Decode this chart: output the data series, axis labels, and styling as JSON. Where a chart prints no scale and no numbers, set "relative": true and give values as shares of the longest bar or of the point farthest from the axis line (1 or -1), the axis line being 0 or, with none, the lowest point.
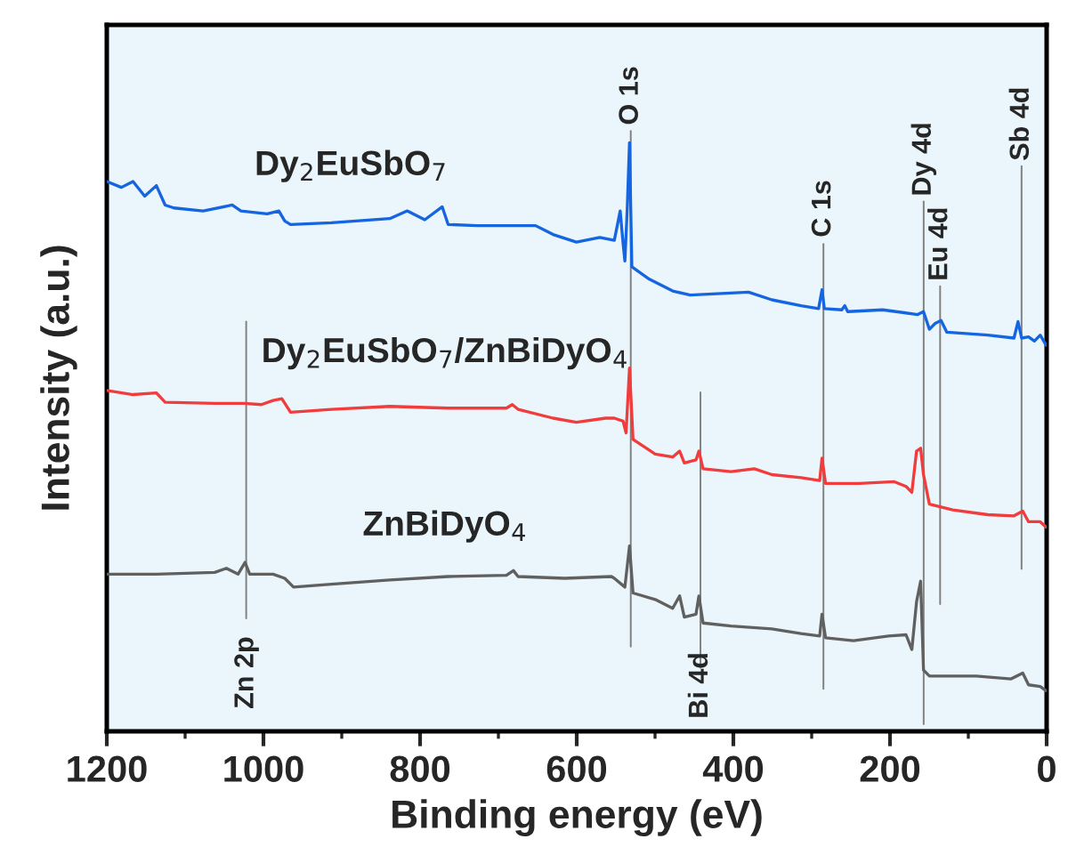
{
  "chart_data": {
    "type": "line",
    "relative": true,
    "xlabel": "Binding energy (eV)",
    "ylabel": "Intensity (a.u.)",
    "xlim": [
      1200,
      0
    ],
    "xticks": [
      1200,
      {
        "value": 1100,
        "label": null
      },
      1000,
      {
        "value": 900,
        "label": null
      },
      800,
      {
        "value": 700,
        "label": null
      },
      600,
      {
        "value": 500,
        "label": null
      },
      400,
      {
        "value": 300,
        "label": null
      },
      200,
      {
        "value": 100,
        "label": null
      },
      0
    ],
    "tick_labels": "x",
    "grid": false,
    "series": [
      {
        "name": "Dy$_{2}$EuSbO$_{7}$",
        "color": "#1565e0",
        "x": [
          1200,
          1181.4,
          1166.5,
          1151.6,
          1136.7,
          1125.5,
          1114.3,
          1077.1,
          1039.9,
          1028.7,
          995.2,
          980.3,
          972.8,
          965.4,
          913.2,
          838.7,
          816.4,
          794.0,
          771.7,
          764.2,
          727.0,
          652.5,
          630.2,
          600.4,
          570.6,
          552.0,
          544.5,
          540.8,
          538.5,
          535.6,
          532.6,
          529.6,
          507.3,
          477.5,
          455.1,
          380.6,
          350.8,
          313.6,
          291.2,
          286.8,
          283.8,
          261.5,
          257.8,
          254.0,
          209.3,
          164.6,
          157.2,
          149.7,
          142.3,
          134.8,
          127.4,
          75.2,
          41.7,
          36.5,
          32.0,
          23.1,
          15.6,
          8.2,
          0.7
        ],
        "values": [
          0.934,
          0.924,
          0.934,
          0.909,
          0.927,
          0.894,
          0.889,
          0.884,
          0.894,
          0.884,
          0.879,
          0.884,
          0.867,
          0.861,
          0.864,
          0.871,
          0.884,
          0.869,
          0.891,
          0.861,
          0.859,
          0.859,
          0.844,
          0.831,
          0.839,
          0.834,
          0.884,
          0.829,
          0.799,
          0.884,
          1.0,
          0.789,
          0.768,
          0.748,
          0.741,
          0.746,
          0.733,
          0.723,
          0.718,
          0.75,
          0.718,
          0.716,
          0.723,
          0.713,
          0.716,
          0.708,
          0.713,
          0.683,
          0.693,
          0.698,
          0.678,
          0.673,
          0.668,
          0.696,
          0.668,
          0.67,
          0.663,
          0.673,
          0.656
        ]
      },
      {
        "name": "Dy$_{2}$EuSbO$_{7}$/ZnBiDyO$_{4}$",
        "color": "#f03c3c",
        "x": [
          1200,
          1166.5,
          1136.7,
          1125.5,
          1062.2,
          1025.0,
          1002.6,
          987.7,
          976.5,
          965.4,
          913.2,
          838.7,
          764.2,
          689.8,
          682.3,
          674.9,
          630.2,
          600.4,
          563.1,
          552.0,
          540.8,
          537.0,
          532.6,
          528.1,
          499.8,
          477.5,
          468.6,
          462.6,
          447.7,
          444.0,
          438.7,
          403.0,
          373.2,
          350.8,
          313.6,
          289.8,
          286.8,
          282.3,
          239.1,
          194.4,
          179.5,
          172.1,
          166.1,
          160.9,
          157.2,
          149.7,
          119.9,
          75.2,
          41.7,
          30.5,
          23.1,
          8.2,
          0.7
        ],
        "values": [
          0.579,
          0.572,
          0.575,
          0.559,
          0.557,
          0.557,
          0.555,
          0.562,
          0.565,
          0.542,
          0.547,
          0.552,
          0.549,
          0.549,
          0.555,
          0.547,
          0.532,
          0.525,
          0.532,
          0.532,
          0.527,
          0.507,
          0.617,
          0.496,
          0.471,
          0.466,
          0.476,
          0.456,
          0.461,
          0.476,
          0.446,
          0.441,
          0.446,
          0.436,
          0.431,
          0.426,
          0.464,
          0.421,
          0.421,
          0.424,
          0.416,
          0.406,
          0.476,
          0.481,
          0.436,
          0.386,
          0.376,
          0.368,
          0.366,
          0.374,
          0.356,
          0.356,
          0.347
        ]
      },
      {
        "name": "ZnBiDyO$_{4}$",
        "color": "#606060",
        "x": [
          1200,
          1136.7,
          1062.2,
          1047.3,
          1032.4,
          1023.5,
          1017.5,
          987.7,
          972.8,
          961.6,
          913.2,
          838.7,
          764.2,
          689.8,
          680.8,
          674.9,
          615.3,
          555.7,
          552.0,
          538.5,
          532.6,
          528.1,
          499.8,
          477.5,
          468.6,
          462.6,
          447.7,
          444.0,
          438.7,
          403.0,
          350.8,
          313.6,
          289.8,
          286.8,
          282.3,
          246.6,
          201.9,
          179.5,
          172.1,
          166.1,
          160.9,
          157.2,
          149.7,
          90.1,
          45.4,
          30.5,
          23.1,
          8.2,
          0.7
        ],
        "values": [
          0.267,
          0.267,
          0.27,
          0.277,
          0.267,
          0.287,
          0.267,
          0.267,
          0.26,
          0.245,
          0.25,
          0.257,
          0.263,
          0.265,
          0.273,
          0.263,
          0.26,
          0.263,
          0.26,
          0.245,
          0.315,
          0.235,
          0.224,
          0.209,
          0.23,
          0.194,
          0.199,
          0.23,
          0.184,
          0.179,
          0.174,
          0.166,
          0.162,
          0.199,
          0.159,
          0.154,
          0.162,
          0.164,
          0.139,
          0.22,
          0.255,
          0.104,
          0.094,
          0.094,
          0.089,
          0.099,
          0.079,
          0.076,
          0.069
        ]
      }
    ],
    "ref_lines": [
      {
        "axis": "x",
        "value": 1022,
        "label": "Zn 2p",
        "color": "#808080"
      },
      {
        "axis": "x",
        "value": 531,
        "label": "O 1s",
        "color": "#808080"
      },
      {
        "axis": "x",
        "value": 442,
        "label": "Bi 4d",
        "color": "#808080"
      },
      {
        "axis": "x",
        "value": 285,
        "label": "C 1s",
        "color": "#808080"
      },
      {
        "axis": "x",
        "value": 157,
        "label": "Dy 4d",
        "color": "#808080"
      },
      {
        "axis": "x",
        "value": 136,
        "label": "Eu 4d",
        "color": "#808080"
      },
      {
        "axis": "x",
        "value": 32,
        "label": "Sb 4d",
        "color": "#808080"
      }
    ]
  }
}
